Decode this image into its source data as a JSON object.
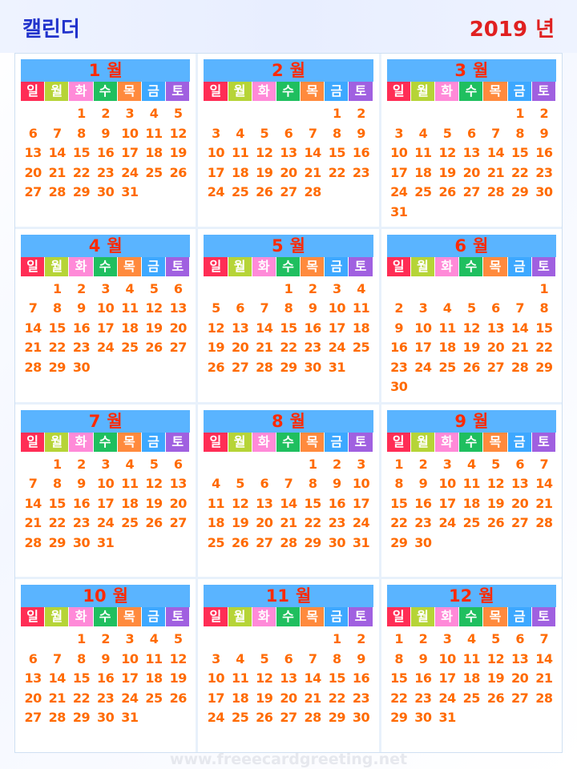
{
  "header": {
    "title": "캘린더",
    "year": "2019",
    "year_suffix": "년"
  },
  "month_suffix": "월",
  "weekdays": [
    "일",
    "월",
    "화",
    "수",
    "목",
    "금",
    "토"
  ],
  "months": [
    {
      "label": "1",
      "start": 2,
      "days": 31
    },
    {
      "label": "2",
      "start": 5,
      "days": 28
    },
    {
      "label": "3",
      "start": 5,
      "days": 31
    },
    {
      "label": "4",
      "start": 1,
      "days": 30
    },
    {
      "label": "5",
      "start": 3,
      "days": 31
    },
    {
      "label": "6",
      "start": 6,
      "days": 30
    },
    {
      "label": "7",
      "start": 1,
      "days": 31
    },
    {
      "label": "8",
      "start": 4,
      "days": 31
    },
    {
      "label": "9",
      "start": 0,
      "days": 30
    },
    {
      "label": "10",
      "start": 2,
      "days": 31
    },
    {
      "label": "11",
      "start": 5,
      "days": 30
    },
    {
      "label": "12",
      "start": 0,
      "days": 31
    }
  ],
  "footer": {
    "watermark": "www.freeecardgreeting.net"
  },
  "colors": {
    "title": "#2233cc",
    "year": "#e02020",
    "month_header_bg": "#5ab4ff",
    "month_label": "#ff2a00",
    "day_number": "#ff6a00",
    "weekday_backgrounds": [
      "#ff2d55",
      "#b6d437",
      "#ff8ad8",
      "#1fbf5f",
      "#ff8a3d",
      "#3da8ff",
      "#a060e0"
    ]
  }
}
